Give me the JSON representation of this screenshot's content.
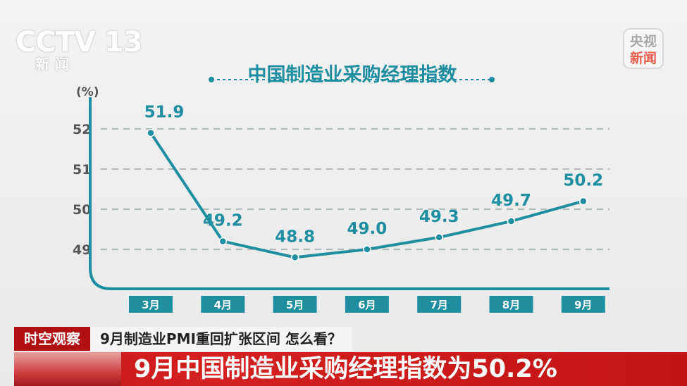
{
  "logos": {
    "channel_mark": "CCTV 13",
    "channel_sub": "新闻",
    "app_top": "央视",
    "app_bottom": "新闻"
  },
  "chart_data": {
    "type": "line",
    "title": "中国制造业采购经理指数",
    "ylabel": "(%)",
    "ylim": [
      48,
      52.8
    ],
    "yticks": [
      49,
      50,
      51,
      52
    ],
    "grid": true,
    "categories": [
      "3月",
      "4月",
      "5月",
      "6月",
      "7月",
      "8月",
      "9月"
    ],
    "values": [
      51.9,
      49.2,
      48.8,
      49.0,
      49.3,
      49.7,
      50.2
    ],
    "data_labels": [
      "51.9",
      "49.2",
      "48.8",
      "49.0",
      "49.3",
      "49.7",
      "50.2"
    ],
    "colors": {
      "line": "#1e8ea0",
      "axis": "#1e8ea0",
      "label": "#1e8ea0",
      "grid": "#9aa8aa"
    }
  },
  "banner": {
    "tag": "时空观察",
    "topic": "9月制造业PMI重回扩张区间 怎么看？",
    "headline": "9月中国制造业采购经理指数为50.2%"
  }
}
